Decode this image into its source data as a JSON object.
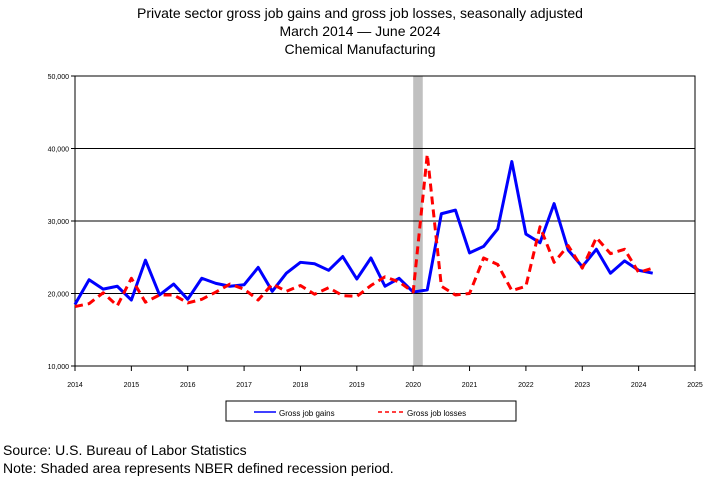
{
  "titles": {
    "line1": "Private sector gross job gains and gross job losses, seasonally adjusted",
    "line2": "March 2014 — June 2024",
    "line3": "Chemical Manufacturing"
  },
  "footer": {
    "source": "Source: U.S. Bureau of Labor Statistics",
    "note": "Note: Shaded area represents NBER defined recession period."
  },
  "chart_data": {
    "type": "line",
    "title": "Private sector gross job gains and gross job losses, seasonally adjusted",
    "xlim": [
      2014,
      2025
    ],
    "ylim": [
      10000,
      50000
    ],
    "x_ticks": [
      "2014",
      "2015",
      "2016",
      "2017",
      "2018",
      "2019",
      "2020",
      "2021",
      "2022",
      "2023",
      "2024",
      "2025"
    ],
    "y_ticks": [
      "10,000",
      "20,000",
      "30,000",
      "40,000",
      "50,000"
    ],
    "gridlines_y": [
      20000,
      30000,
      40000
    ],
    "legend_position": "bottom",
    "recession": {
      "start": 2020.0,
      "end": 2020.17,
      "color": "#c0c0c0"
    },
    "x": [
      2014.0,
      2014.25,
      2014.5,
      2014.75,
      2015.0,
      2015.25,
      2015.5,
      2015.75,
      2016.0,
      2016.25,
      2016.5,
      2016.75,
      2017.0,
      2017.25,
      2017.5,
      2017.75,
      2018.0,
      2018.25,
      2018.5,
      2018.75,
      2019.0,
      2019.25,
      2019.5,
      2019.75,
      2020.0,
      2020.25,
      2020.5,
      2020.75,
      2021.0,
      2021.25,
      2021.5,
      2021.75,
      2022.0,
      2022.25,
      2022.5,
      2022.75,
      2023.0,
      2023.25,
      2023.5,
      2023.75,
      2024.0,
      2024.25
    ],
    "series": [
      {
        "name": "Gross job gains",
        "color": "#0000ff",
        "dash": "solid",
        "values": [
          18500,
          21900,
          20600,
          21000,
          19100,
          24600,
          19800,
          21300,
          19200,
          22100,
          21400,
          21000,
          21200,
          23600,
          20300,
          22800,
          24300,
          24100,
          23200,
          25100,
          22000,
          24900,
          21000,
          22100,
          20200,
          20500,
          31000,
          31500,
          25600,
          26500,
          28900,
          38200,
          28200,
          27000,
          32400,
          26000,
          23700,
          26100,
          22800,
          24500,
          23200,
          22800
        ]
      },
      {
        "name": "Gross job losses",
        "color": "#ff0000",
        "dash": "dashed",
        "values": [
          18200,
          18600,
          20100,
          18300,
          22100,
          18800,
          19800,
          19800,
          18700,
          19200,
          20200,
          21300,
          20600,
          19100,
          21300,
          20300,
          21100,
          19900,
          20800,
          19700,
          19600,
          21100,
          22300,
          21600,
          20200,
          39200,
          21000,
          19800,
          20000,
          24900,
          24000,
          20400,
          21000,
          29200,
          24300,
          26600,
          23500,
          27700,
          25500,
          26100,
          22900,
          23500
        ]
      }
    ]
  }
}
